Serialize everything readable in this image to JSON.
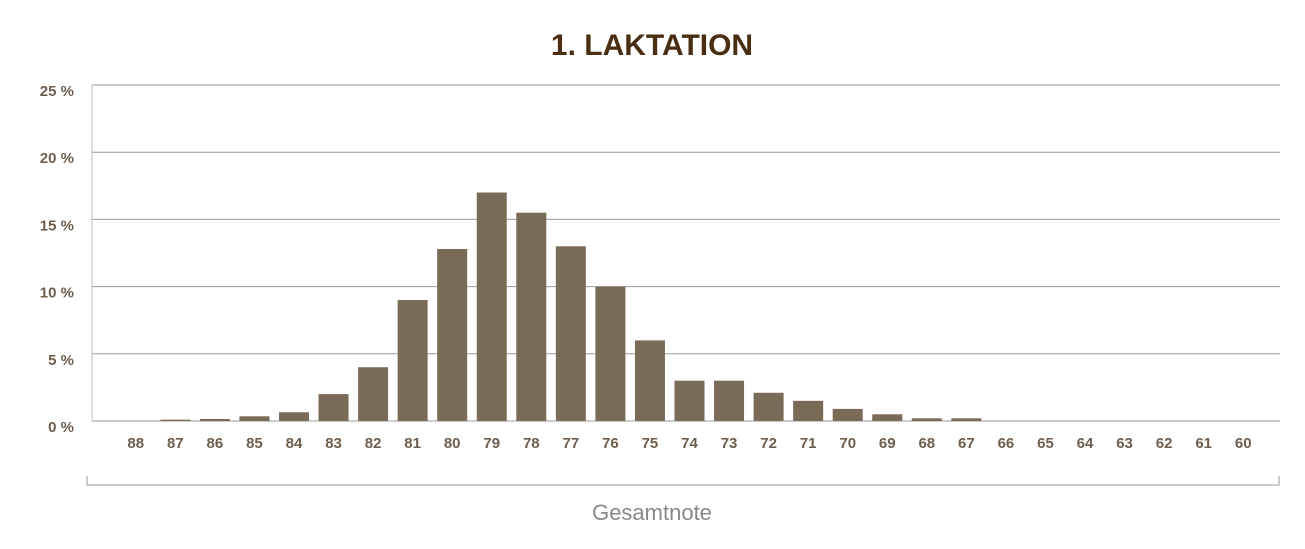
{
  "chart_data": {
    "type": "bar",
    "title": "1. LAKTATION",
    "x_label": "Gesamtnote",
    "categories": [
      "88",
      "87",
      "86",
      "85",
      "84",
      "83",
      "82",
      "81",
      "80",
      "79",
      "78",
      "77",
      "76",
      "75",
      "74",
      "73",
      "72",
      "71",
      "70",
      "69",
      "68",
      "67",
      "66",
      "65",
      "64",
      "63",
      "62",
      "61",
      "60"
    ],
    "values": [
      0,
      0.1,
      0.15,
      0.35,
      0.65,
      2.0,
      4.0,
      9.0,
      12.8,
      17.0,
      15.5,
      13.0,
      10.0,
      6.0,
      3.0,
      3.0,
      2.1,
      1.5,
      0.9,
      0.5,
      0.2,
      0.2,
      0,
      0,
      0,
      0,
      0,
      0,
      0
    ],
    "color": "#7a6a58",
    "ylim": [
      0,
      25
    ],
    "yticks": [
      {
        "value": 0,
        "label": "0 %"
      },
      {
        "value": 5,
        "label": "5 %"
      },
      {
        "value": 10,
        "label": "10 %"
      },
      {
        "value": 15,
        "label": "15 %"
      },
      {
        "value": 20,
        "label": "20 %"
      },
      {
        "value": 25,
        "label": "25 %"
      }
    ],
    "grid": true
  }
}
